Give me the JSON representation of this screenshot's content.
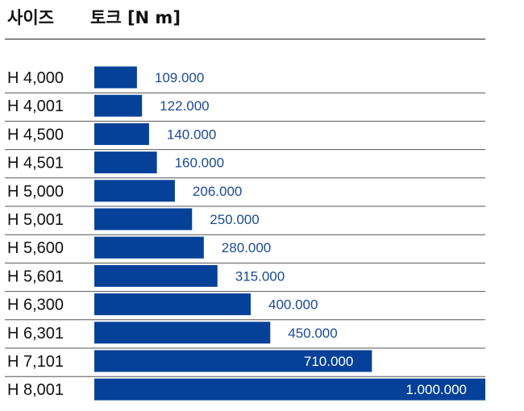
{
  "header": {
    "size_label": "사이즈",
    "torque_label": "토크 [N m]"
  },
  "colors": {
    "bar": "#064199",
    "value_text": "#1c4a94",
    "value_text_inside": "#ffffff",
    "divider": "#555555"
  },
  "chart_data": {
    "type": "bar",
    "orientation": "horizontal",
    "title": "",
    "xlabel": "토크 [N m]",
    "ylabel": "사이즈",
    "categories": [
      "H 4,000",
      "H 4,001",
      "H 4,500",
      "H 4,501",
      "H 5,000",
      "H 5,001",
      "H 5,600",
      "H 5,601",
      "H 6,300",
      "H 6,301",
      "H 7,101",
      "H 8,001"
    ],
    "values": [
      109000,
      122000,
      140000,
      160000,
      206000,
      250000,
      280000,
      315000,
      400000,
      450000,
      710000,
      1000000
    ],
    "value_labels": [
      "109.000",
      "122.000",
      "140.000",
      "160.000",
      "206.000",
      "250.000",
      "280.000",
      "315.000",
      "400.000",
      "450.000",
      "710.000",
      "1.000.000"
    ],
    "xlim": [
      0,
      1000000
    ],
    "grid": false,
    "legend": "none"
  }
}
